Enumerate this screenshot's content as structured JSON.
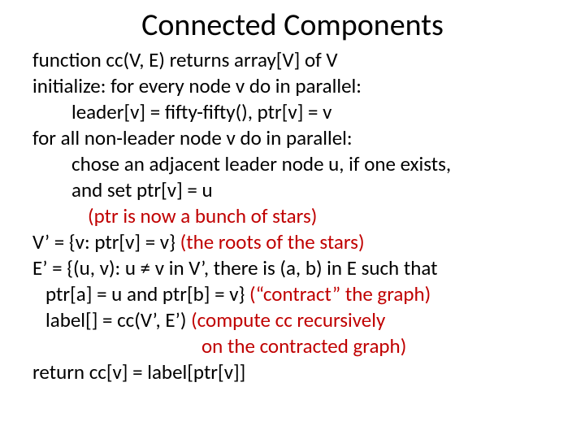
{
  "colors": {
    "text": "#000000",
    "accent": "#c00000",
    "background": "#ffffff"
  },
  "typography": {
    "title_fontsize": 38,
    "body_fontsize": 25,
    "font_family": "Calibri"
  },
  "title": "Connected Components",
  "lines": {
    "l1": "function cc(V, E) returns array[V] of V",
    "l2": "initialize:  for every node v do in parallel:",
    "l3": "leader[v] = fifty-fifty(), ptr[v] = v",
    "l4": "for all non-leader node v do in parallel:",
    "l5": "chose an adjacent leader node u, if one exists,",
    "l6": "and set ptr[v] = u",
    "l7": "(ptr is now a bunch of stars)",
    "l8a": "V’ = {v: ptr[v] = v} ",
    "l8b": "(the roots of the stars)",
    "l9": "E’ = {(u, v): u ≠ v in V’, there is (a, b) in E such that",
    "l10a": "ptr[a] = u and ptr[b] = v} ",
    "l10b": "(“contract” the graph)",
    "l11a": "label[] = cc(V’, E’)   ",
    "l11b": "(compute cc recursively",
    "l12": "on the contracted graph)",
    "l13": "return cc[v] = label[ptr[v]]"
  }
}
